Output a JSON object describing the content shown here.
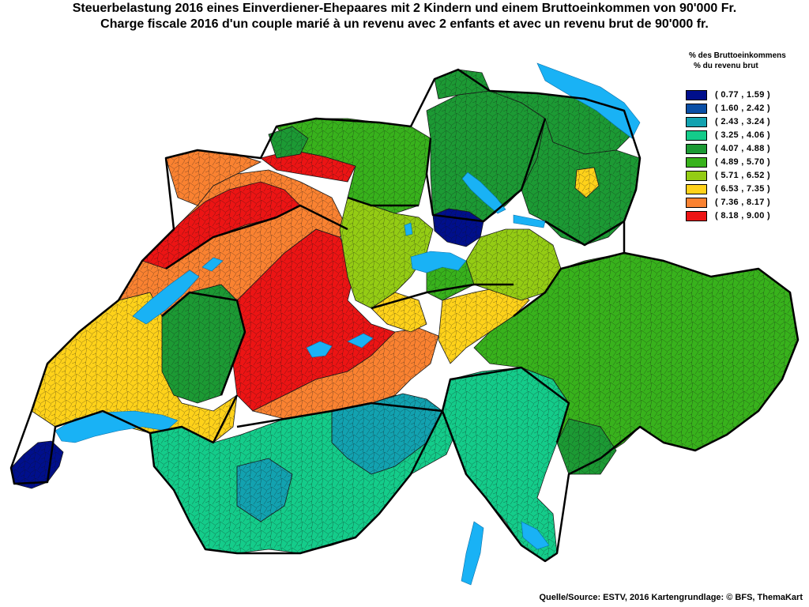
{
  "title": {
    "de": "Steuerbelastung 2016 eines Einverdiener-Ehepaares mit 2 Kindern und einem Bruttoeinkommen von 90'000 Fr.",
    "fr": "Charge fiscale 2016 d'un couple marié à un revenu avec 2 enfants et avec un revenu brut de 90'000 fr."
  },
  "legend": {
    "heading_de": "% des Bruttoeinkommens",
    "heading_fr": "% du revenu brut",
    "classes": [
      {
        "label": "( 0.77 , 1.59 )",
        "color": "#000f8c"
      },
      {
        "label": "( 1.60 , 2.42 )",
        "color": "#0a4fa6"
      },
      {
        "label": "( 2.43 , 3.24 )",
        "color": "#12a2b0"
      },
      {
        "label": "( 3.25 , 4.06 )",
        "color": "#14cc8a"
      },
      {
        "label": "( 4.07 , 4.88 )",
        "color": "#1c9a34"
      },
      {
        "label": "( 4.89 , 5.70 )",
        "color": "#38b21c"
      },
      {
        "label": "( 5.71 , 6.52 )",
        "color": "#94cc14"
      },
      {
        "label": "( 6.53 , 7.35 )",
        "color": "#ffd21a"
      },
      {
        "label": "( 7.36 , 8.17 )",
        "color": "#fa8231"
      },
      {
        "label": "( 8.18 , 9.00 )",
        "color": "#ec1414"
      }
    ]
  },
  "lake_color": "#19b2f5",
  "source": "Quelle/Source: ESTV, 2016 Kartengrundlage: © BFS, ThemaKart"
}
